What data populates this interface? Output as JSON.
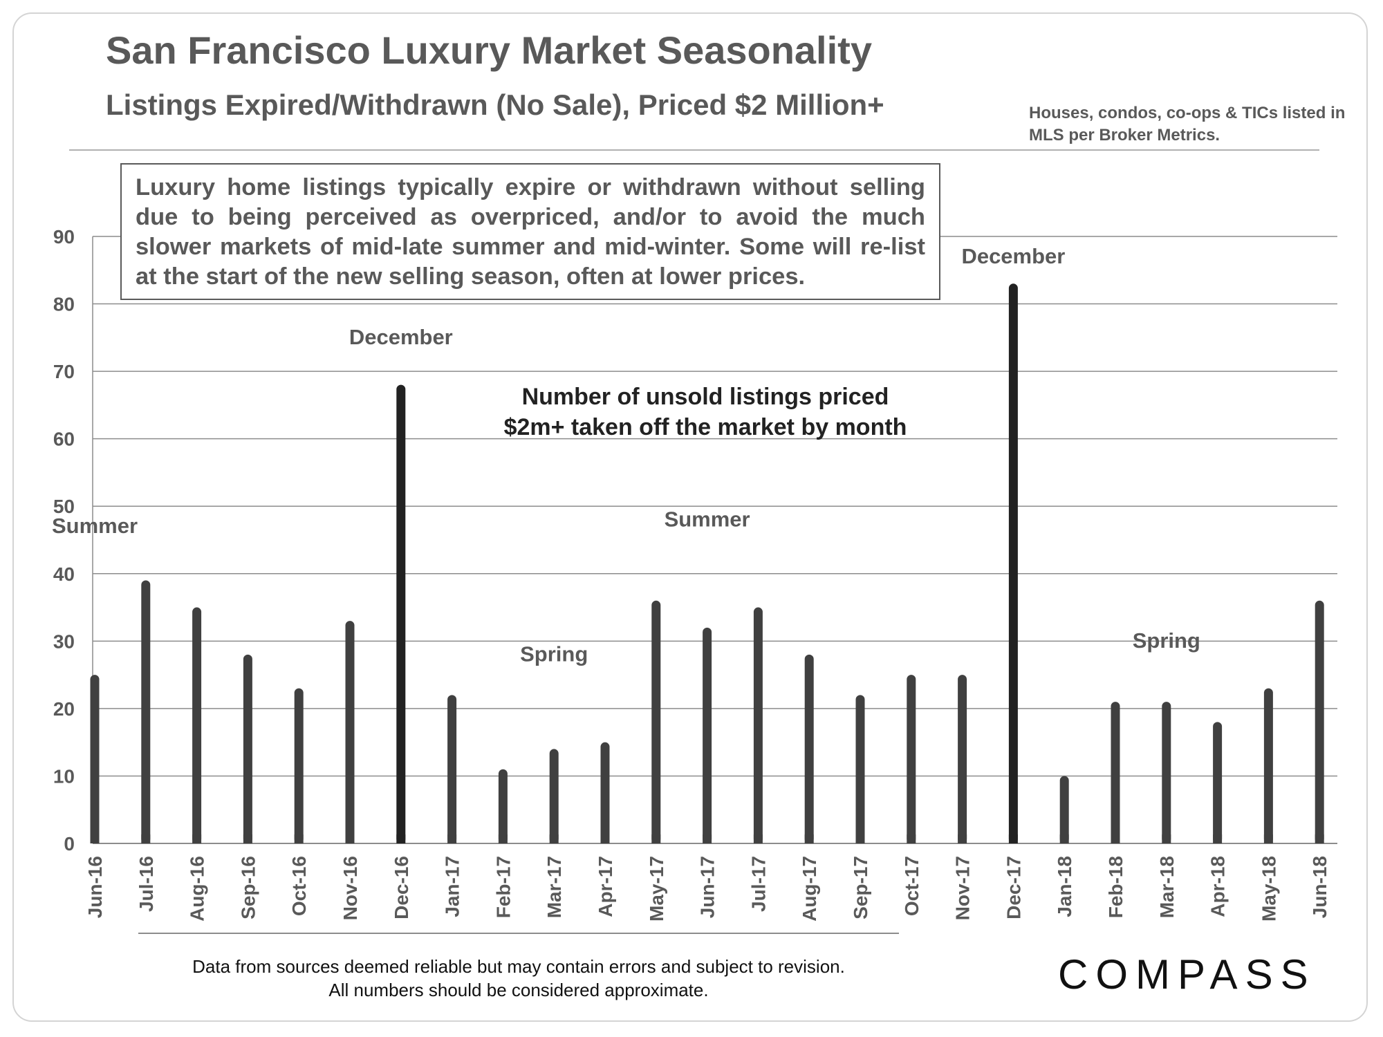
{
  "page": {
    "title": "San Francisco Luxury Market Seasonality",
    "subtitle": "Listings Expired/Withdrawn (No Sale), Priced $2 Million+",
    "source_note": "Houses, condos, co-ops & TICs listed in MLS per Broker Metrics.",
    "callout": "Luxury home listings typically expire or withdrawn without selling due to being perceived as overpriced, and/or to avoid the much slower markets of mid-late summer and mid-winter. Some will re-list at the start of the new selling season, often at lower prices.",
    "annotation_line1": "Number of unsold listings priced",
    "annotation_line2": "$2m+ taken off the market by month",
    "footnote_line1": "Data from sources deemed reliable but may contain errors and subject to revision.",
    "footnote_line2": "All numbers should be considered approximate.",
    "logo": "COMPASS"
  },
  "colors": {
    "bar": "#404040",
    "bar_peak": "#222222",
    "grid": "#8c8c8c",
    "text": "#595959"
  },
  "chart_data": {
    "type": "bar",
    "title": "Number of unsold listings priced $2m+ taken off the market by month",
    "xlabel": "",
    "ylabel": "",
    "ylim": [
      0,
      90
    ],
    "yticks": [
      0,
      10,
      20,
      30,
      40,
      50,
      60,
      70,
      80,
      90
    ],
    "grid": true,
    "categories": [
      "Jun-16",
      "Jul-16",
      "Aug-16",
      "Sep-16",
      "Oct-16",
      "Nov-16",
      "Dec-16",
      "Jan-17",
      "Feb-17",
      "Mar-17",
      "Apr-17",
      "May-17",
      "Jun-17",
      "Jul-17",
      "Aug-17",
      "Sep-17",
      "Oct-17",
      "Nov-17",
      "Dec-17",
      "Jan-18",
      "Feb-18",
      "Mar-18",
      "Apr-18",
      "May-18",
      "Jun-18"
    ],
    "values": [
      25,
      39,
      35,
      28,
      23,
      33,
      68,
      22,
      11,
      14,
      15,
      36,
      32,
      35,
      28,
      22,
      25,
      25,
      83,
      10,
      21,
      21,
      18,
      23,
      36
    ],
    "annotations": [
      {
        "text": "Summer",
        "category": "Jun-16",
        "y": 46
      },
      {
        "text": "December",
        "category": "Dec-16",
        "y": 74
      },
      {
        "text": "Spring",
        "category": "Mar-17",
        "y": 27
      },
      {
        "text": "Summer",
        "category": "Jun-17",
        "y": 47
      },
      {
        "text": "December",
        "category": "Dec-17",
        "y": 86
      },
      {
        "text": "Spring",
        "category": "Mar-18",
        "y": 29
      }
    ]
  }
}
